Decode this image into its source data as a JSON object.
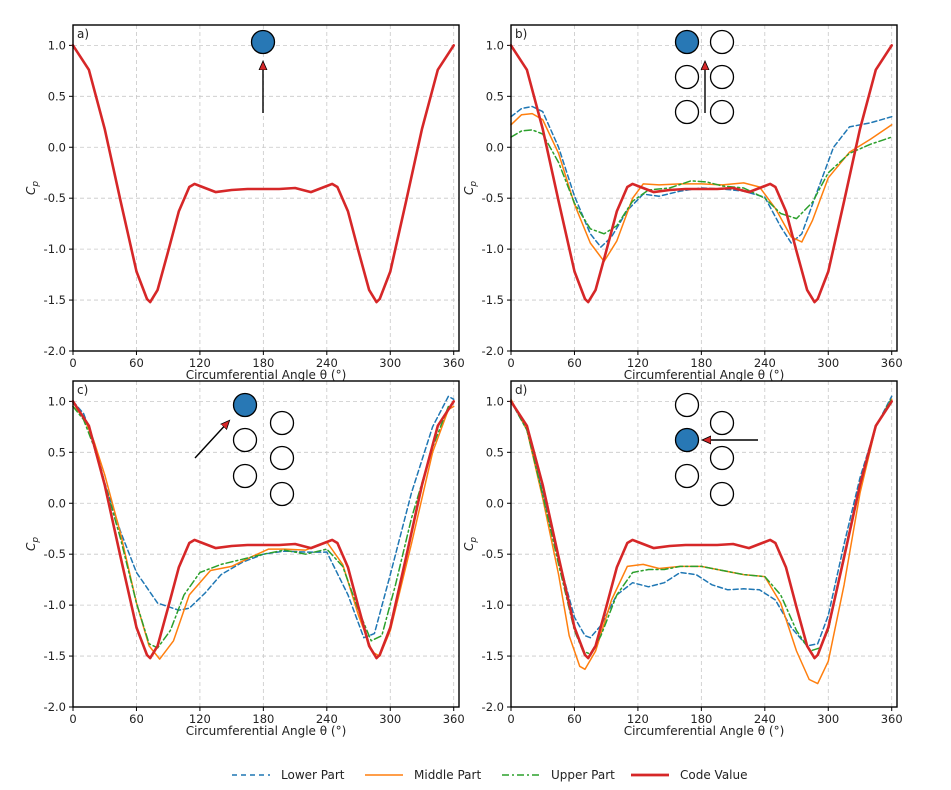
{
  "colors": {
    "lower": "#1f77b4",
    "middle": "#ff7f0e",
    "upper": "#2ca02c",
    "code": "#d62728",
    "grid": "#c8c8c8",
    "axis": "#000000",
    "cylinder_fill": "#2878b5"
  },
  "legend": {
    "lower": "Lower Part",
    "middle": "Middle Part",
    "upper": "Upper Part",
    "code": "Code Value"
  },
  "chart_data": [
    {
      "type": "line",
      "panel_label": "a)",
      "xlabel": "Circumferential Angle θ (°)",
      "ylabel": "C",
      "ylabel_sub": "p",
      "xlim": [
        0,
        365
      ],
      "ylim": [
        -2.0,
        1.2
      ],
      "xticks": [
        "0",
        "60",
        "120",
        "180",
        "240",
        "300",
        "360"
      ],
      "yticks": [
        "1.0",
        "0.5",
        "0.0",
        "-0.5",
        "-1.0",
        "-1.5",
        "-2.0"
      ],
      "inset": "single cylinder, flow from below",
      "series": [
        {
          "name": "Code Value",
          "key": "code",
          "x": [
            0,
            15,
            30,
            45,
            60,
            70,
            73,
            80,
            90,
            100,
            110,
            115,
            120,
            135,
            150,
            165,
            180,
            195,
            210,
            225,
            240,
            245,
            250,
            260,
            270,
            280,
            287,
            290,
            300,
            315,
            330,
            345,
            360
          ],
          "y": [
            1.0,
            0.76,
            0.18,
            -0.53,
            -1.22,
            -1.49,
            -1.52,
            -1.4,
            -1.02,
            -0.63,
            -0.39,
            -0.36,
            -0.38,
            -0.44,
            -0.42,
            -0.41,
            -0.41,
            -0.41,
            -0.4,
            -0.44,
            -0.38,
            -0.36,
            -0.39,
            -0.63,
            -1.02,
            -1.4,
            -1.52,
            -1.49,
            -1.22,
            -0.53,
            0.18,
            0.76,
            1.0
          ]
        }
      ]
    },
    {
      "type": "line",
      "panel_label": "b)",
      "xlabel": "Circumferential Angle θ (°)",
      "ylabel": "C",
      "ylabel_sub": "p",
      "xlim": [
        0,
        365
      ],
      "ylim": [
        -2.0,
        1.2
      ],
      "xticks": [
        "0",
        "60",
        "120",
        "180",
        "240",
        "300",
        "360"
      ],
      "yticks": [
        "1.0",
        "0.5",
        "0.0",
        "-0.5",
        "-1.0",
        "-1.5",
        "-2.0"
      ],
      "inset": "2x3 cylinder array, top-left highlighted, flow from below",
      "series": [
        {
          "name": "Lower Part",
          "key": "lower",
          "x": [
            0,
            10,
            20,
            30,
            45,
            60,
            75,
            85,
            95,
            110,
            125,
            140,
            160,
            180,
            200,
            220,
            240,
            255,
            265,
            275,
            290,
            305,
            320,
            340,
            360
          ],
          "y": [
            0.3,
            0.38,
            0.4,
            0.35,
            0.0,
            -0.48,
            -0.85,
            -0.98,
            -0.88,
            -0.62,
            -0.46,
            -0.48,
            -0.43,
            -0.4,
            -0.41,
            -0.43,
            -0.49,
            -0.78,
            -0.94,
            -0.85,
            -0.42,
            0.0,
            0.2,
            0.24,
            0.3
          ]
        },
        {
          "name": "Middle Part",
          "key": "middle",
          "x": [
            0,
            10,
            20,
            30,
            45,
            60,
            75,
            88,
            100,
            115,
            125,
            140,
            160,
            180,
            200,
            220,
            235,
            250,
            265,
            275,
            285,
            300,
            320,
            340,
            360
          ],
          "y": [
            0.22,
            0.32,
            0.33,
            0.27,
            -0.06,
            -0.56,
            -0.94,
            -1.12,
            -0.92,
            -0.5,
            -0.36,
            -0.37,
            -0.36,
            -0.36,
            -0.37,
            -0.35,
            -0.39,
            -0.6,
            -0.88,
            -0.93,
            -0.72,
            -0.3,
            -0.05,
            0.08,
            0.22
          ]
        },
        {
          "name": "Upper Part",
          "key": "upper",
          "x": [
            0,
            10,
            20,
            30,
            45,
            60,
            75,
            88,
            100,
            115,
            130,
            150,
            170,
            185,
            200,
            220,
            240,
            255,
            270,
            285,
            300,
            320,
            340,
            360
          ],
          "y": [
            0.1,
            0.16,
            0.17,
            0.13,
            -0.15,
            -0.55,
            -0.8,
            -0.85,
            -0.77,
            -0.53,
            -0.42,
            -0.4,
            -0.33,
            -0.34,
            -0.38,
            -0.4,
            -0.5,
            -0.65,
            -0.7,
            -0.54,
            -0.25,
            -0.06,
            0.03,
            0.1
          ]
        },
        {
          "name": "Code Value",
          "key": "code",
          "x": [
            0,
            15,
            30,
            45,
            60,
            70,
            73,
            80,
            90,
            100,
            110,
            115,
            120,
            135,
            150,
            165,
            180,
            195,
            210,
            225,
            240,
            245,
            250,
            260,
            270,
            280,
            287,
            290,
            300,
            315,
            330,
            345,
            360
          ],
          "y": [
            1.0,
            0.76,
            0.18,
            -0.53,
            -1.22,
            -1.49,
            -1.52,
            -1.4,
            -1.02,
            -0.63,
            -0.39,
            -0.36,
            -0.38,
            -0.44,
            -0.42,
            -0.41,
            -0.41,
            -0.41,
            -0.4,
            -0.44,
            -0.38,
            -0.36,
            -0.39,
            -0.63,
            -1.02,
            -1.4,
            -1.52,
            -1.49,
            -1.22,
            -0.53,
            0.18,
            0.76,
            1.0
          ]
        }
      ]
    },
    {
      "type": "line",
      "panel_label": "c)",
      "xlabel": "Circumferential Angle θ (°)",
      "ylabel": "C",
      "ylabel_sub": "p",
      "xlim": [
        0,
        365
      ],
      "ylim": [
        -2.0,
        1.2
      ],
      "xticks": [
        "0",
        "60",
        "120",
        "180",
        "240",
        "300",
        "360"
      ],
      "yticks": [
        "1.0",
        "0.5",
        "0.0",
        "-0.5",
        "-1.0",
        "-1.5",
        "-2.0"
      ],
      "inset": "staggered cylinder array, top-left highlighted, flow diagonal from lower-left",
      "series": [
        {
          "name": "Lower Part",
          "key": "lower",
          "x": [
            0,
            10,
            20,
            30,
            45,
            60,
            80,
            100,
            110,
            125,
            140,
            160,
            180,
            200,
            220,
            240,
            260,
            275,
            285,
            300,
            320,
            340,
            355,
            360
          ],
          "y": [
            1.0,
            0.88,
            0.6,
            0.2,
            -0.28,
            -0.68,
            -0.98,
            -1.05,
            -1.03,
            -0.88,
            -0.7,
            -0.58,
            -0.5,
            -0.47,
            -0.48,
            -0.48,
            -0.9,
            -1.32,
            -1.28,
            -0.7,
            0.1,
            0.75,
            1.05,
            1.02
          ]
        },
        {
          "name": "Middle Part",
          "key": "middle",
          "x": [
            0,
            10,
            20,
            30,
            45,
            60,
            72,
            82,
            95,
            110,
            130,
            150,
            170,
            185,
            200,
            220,
            240,
            255,
            270,
            283,
            290,
            300,
            320,
            340,
            355,
            360
          ],
          "y": [
            0.95,
            0.85,
            0.6,
            0.28,
            -0.3,
            -0.98,
            -1.4,
            -1.53,
            -1.35,
            -0.9,
            -0.66,
            -0.62,
            -0.52,
            -0.45,
            -0.45,
            -0.46,
            -0.38,
            -0.6,
            -1.1,
            -1.46,
            -1.5,
            -1.25,
            -0.4,
            0.5,
            0.92,
            0.95
          ]
        },
        {
          "name": "Upper Part",
          "key": "upper",
          "x": [
            0,
            10,
            20,
            30,
            45,
            60,
            72,
            80,
            92,
            105,
            120,
            140,
            160,
            180,
            200,
            220,
            240,
            255,
            270,
            282,
            292,
            305,
            320,
            340,
            355,
            360
          ],
          "y": [
            0.95,
            0.82,
            0.55,
            0.2,
            -0.35,
            -0.98,
            -1.38,
            -1.42,
            -1.25,
            -0.9,
            -0.68,
            -0.6,
            -0.55,
            -0.5,
            -0.46,
            -0.5,
            -0.45,
            -0.62,
            -1.05,
            -1.35,
            -1.3,
            -0.8,
            -0.15,
            0.55,
            0.95,
            0.98
          ]
        },
        {
          "name": "Code Value",
          "key": "code",
          "x": [
            0,
            15,
            30,
            45,
            60,
            70,
            73,
            80,
            90,
            100,
            110,
            115,
            120,
            135,
            150,
            165,
            180,
            195,
            210,
            225,
            240,
            245,
            250,
            260,
            270,
            280,
            287,
            290,
            300,
            315,
            330,
            345,
            360
          ],
          "y": [
            1.0,
            0.76,
            0.18,
            -0.53,
            -1.22,
            -1.49,
            -1.52,
            -1.4,
            -1.02,
            -0.63,
            -0.39,
            -0.36,
            -0.38,
            -0.44,
            -0.42,
            -0.41,
            -0.41,
            -0.41,
            -0.4,
            -0.44,
            -0.38,
            -0.36,
            -0.39,
            -0.63,
            -1.02,
            -1.4,
            -1.52,
            -1.49,
            -1.22,
            -0.53,
            0.18,
            0.76,
            1.0
          ]
        }
      ]
    },
    {
      "type": "line",
      "panel_label": "d)",
      "xlabel": "Circumferential Angle θ (°)",
      "ylabel": "C",
      "ylabel_sub": "p",
      "xlim": [
        0,
        365
      ],
      "ylim": [
        -2.0,
        1.2
      ],
      "xticks": [
        "0",
        "60",
        "120",
        "180",
        "240",
        "300",
        "360"
      ],
      "yticks": [
        "1.0",
        "0.5",
        "0.0",
        "-0.5",
        "-1.0",
        "-1.5",
        "-2.0"
      ],
      "inset": "staggered cylinder array, middle-left highlighted, flow from right",
      "series": [
        {
          "name": "Lower Part",
          "key": "lower",
          "x": [
            0,
            15,
            30,
            45,
            60,
            70,
            75,
            85,
            100,
            115,
            130,
            145,
            160,
            175,
            190,
            205,
            220,
            235,
            250,
            265,
            280,
            290,
            300,
            315,
            330,
            345,
            360
          ],
          "y": [
            1.0,
            0.72,
            0.1,
            -0.55,
            -1.12,
            -1.3,
            -1.32,
            -1.2,
            -0.9,
            -0.78,
            -0.82,
            -0.78,
            -0.68,
            -0.7,
            -0.8,
            -0.85,
            -0.84,
            -0.85,
            -0.95,
            -1.22,
            -1.4,
            -1.38,
            -1.1,
            -0.4,
            0.25,
            0.75,
            1.05
          ]
        },
        {
          "name": "Middle Part",
          "key": "middle",
          "x": [
            0,
            15,
            30,
            45,
            55,
            65,
            70,
            80,
            95,
            110,
            125,
            140,
            160,
            180,
            200,
            220,
            240,
            255,
            270,
            282,
            290,
            300,
            315,
            330,
            345,
            360
          ],
          "y": [
            1.02,
            0.72,
            0.05,
            -0.7,
            -1.3,
            -1.6,
            -1.63,
            -1.45,
            -0.95,
            -0.62,
            -0.6,
            -0.64,
            -0.62,
            -0.62,
            -0.66,
            -0.7,
            -0.72,
            -0.98,
            -1.45,
            -1.73,
            -1.77,
            -1.55,
            -0.8,
            0.1,
            0.75,
            1.02
          ]
        },
        {
          "name": "Upper Part",
          "key": "upper",
          "x": [
            0,
            15,
            30,
            45,
            60,
            68,
            75,
            85,
            100,
            115,
            130,
            145,
            160,
            180,
            200,
            220,
            240,
            255,
            270,
            283,
            292,
            300,
            315,
            330,
            345,
            360
          ],
          "y": [
            1.0,
            0.72,
            0.08,
            -0.6,
            -1.25,
            -1.45,
            -1.48,
            -1.3,
            -0.9,
            -0.68,
            -0.65,
            -0.65,
            -0.62,
            -0.62,
            -0.66,
            -0.7,
            -0.72,
            -0.9,
            -1.25,
            -1.45,
            -1.42,
            -1.25,
            -0.5,
            0.2,
            0.75,
            1.03
          ]
        },
        {
          "name": "Code Value",
          "key": "code",
          "x": [
            0,
            15,
            30,
            45,
            60,
            70,
            73,
            80,
            90,
            100,
            110,
            115,
            120,
            135,
            150,
            165,
            180,
            195,
            210,
            225,
            240,
            245,
            250,
            260,
            270,
            280,
            287,
            290,
            300,
            315,
            330,
            345,
            360
          ],
          "y": [
            1.0,
            0.76,
            0.18,
            -0.53,
            -1.22,
            -1.49,
            -1.52,
            -1.4,
            -1.02,
            -0.63,
            -0.39,
            -0.36,
            -0.38,
            -0.44,
            -0.42,
            -0.41,
            -0.41,
            -0.41,
            -0.4,
            -0.44,
            -0.38,
            -0.36,
            -0.39,
            -0.63,
            -1.02,
            -1.4,
            -1.52,
            -1.49,
            -1.22,
            -0.53,
            0.18,
            0.76,
            1.0
          ]
        }
      ]
    }
  ]
}
